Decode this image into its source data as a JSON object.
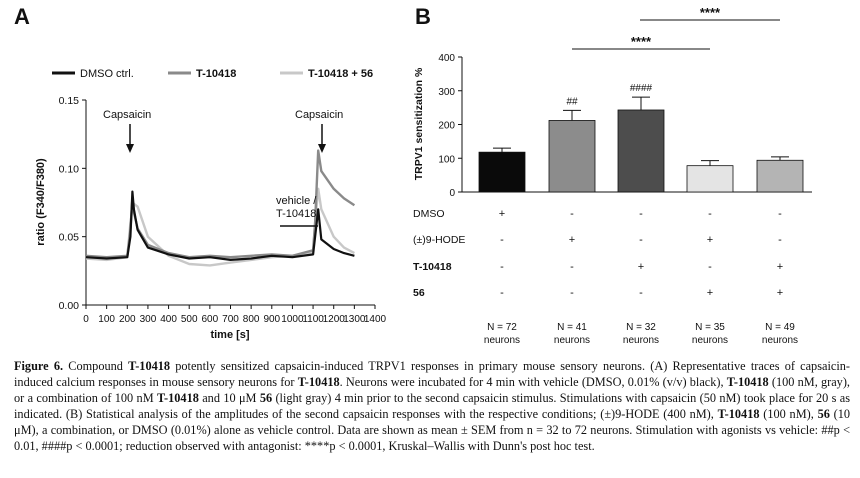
{
  "panelA": {
    "label": "A",
    "legend": [
      "DMSO ctrl.",
      "T-10418",
      "T-10418 + 56"
    ],
    "stim1": "Capsaicin",
    "stim2": "Capsaicin",
    "treatment": [
      "vehicle /",
      "T-10418"
    ],
    "xlabel": "time [s]",
    "ylabel": "ratio (F340/F380)",
    "xticks": [
      "0",
      "100",
      "200",
      "300",
      "400",
      "500",
      "600",
      "700",
      "800",
      "900",
      "1000",
      "1100",
      "1200",
      "1300",
      "1400"
    ],
    "yticks": [
      "0.00",
      "0.05",
      "0.10",
      "0.15"
    ]
  },
  "panelB": {
    "label": "B",
    "ylabel": "TRPV1 sensitization %",
    "yticks": [
      "0",
      "100",
      "200",
      "300",
      "400"
    ],
    "sig_top": "****",
    "sig_mid": "****",
    "hash2": "##",
    "hash4": "####",
    "rows": [
      {
        "label": "DMSO",
        "vals": [
          "+",
          "-",
          "-",
          "-",
          "-"
        ]
      },
      {
        "label": "(±)9-HODE",
        "vals": [
          "-",
          "+",
          "-",
          "+",
          "-"
        ]
      },
      {
        "label": "T-10418",
        "vals": [
          "-",
          "-",
          "+",
          "-",
          "+"
        ]
      },
      {
        "label": "56",
        "vals": [
          "-",
          "-",
          "-",
          "+",
          "+"
        ]
      }
    ],
    "n_values": [
      "N = 72",
      "N = 41",
      "N = 32",
      "N = 35",
      "N = 49"
    ],
    "neurons": "neurons"
  },
  "chart_data": [
    {
      "type": "line",
      "title": "",
      "xlabel": "time [s]",
      "ylabel": "ratio (F340/F380)",
      "xlim": [
        0,
        1400
      ],
      "ylim": [
        0,
        0.15
      ],
      "series": [
        {
          "name": "DMSO ctrl.",
          "color": "#111111",
          "x": [
            0,
            100,
            200,
            215,
            225,
            232,
            250,
            300,
            400,
            500,
            600,
            700,
            800,
            900,
            1000,
            1100,
            1110,
            1125,
            1140,
            1200,
            1250,
            1300
          ],
          "y": [
            0.035,
            0.034,
            0.035,
            0.05,
            0.083,
            0.07,
            0.055,
            0.042,
            0.037,
            0.034,
            0.035,
            0.033,
            0.034,
            0.036,
            0.035,
            0.037,
            0.05,
            0.07,
            0.048,
            0.041,
            0.038,
            0.036
          ]
        },
        {
          "name": "T-10418",
          "color": "#8a8a8a",
          "x": [
            0,
            100,
            200,
            215,
            225,
            232,
            250,
            300,
            400,
            500,
            600,
            700,
            800,
            900,
            1000,
            1100,
            1110,
            1125,
            1140,
            1200,
            1250,
            1300
          ],
          "y": [
            0.036,
            0.035,
            0.036,
            0.055,
            0.078,
            0.068,
            0.056,
            0.044,
            0.038,
            0.035,
            0.036,
            0.035,
            0.036,
            0.037,
            0.036,
            0.04,
            0.06,
            0.113,
            0.098,
            0.085,
            0.078,
            0.073
          ]
        },
        {
          "name": "T-10418 + 56",
          "color": "#c8c8c8",
          "x": [
            0,
            100,
            200,
            215,
            225,
            232,
            250,
            300,
            400,
            500,
            600,
            700,
            800,
            900,
            1000,
            1100,
            1110,
            1125,
            1140,
            1200,
            1250,
            1300
          ],
          "y": [
            0.034,
            0.033,
            0.035,
            0.06,
            0.07,
            0.074,
            0.072,
            0.05,
            0.036,
            0.03,
            0.029,
            0.031,
            0.033,
            0.035,
            0.036,
            0.039,
            0.06,
            0.085,
            0.07,
            0.05,
            0.042,
            0.038
          ]
        }
      ]
    },
    {
      "type": "bar",
      "title": "",
      "ylabel": "TRPV1 sensitization %",
      "ylim": [
        0,
        400
      ],
      "categories": [
        "DMSO",
        "(±)9-HODE",
        "T-10418",
        "(±)9-HODE + 56",
        "T-10418 + 56"
      ],
      "values": [
        118,
        212,
        243,
        78,
        94
      ],
      "errors": [
        12,
        30,
        38,
        15,
        10
      ],
      "colors": [
        "#0a0a0a",
        "#8c8c8c",
        "#4d4d4d",
        "#e4e4e4",
        "#b4b4b4"
      ]
    }
  ],
  "caption": {
    "lead": "Figure 6.",
    "t1": " Compound ",
    "b1": "T-10418",
    "t2": " potently sensitized capsaicin-induced TRPV1 responses in primary mouse sensory neurons. (A) Representative traces of capsaicin-induced calcium responses in mouse sensory neurons for ",
    "b2": "T-10418",
    "t3": ". Neurons were incubated for 4 min with vehicle (DMSO, 0.01% (v/v) black), ",
    "b3": "T-10418",
    "t4": " (100 nM, gray), or a combination of 100 nM ",
    "b4": "T-10418",
    "t5": " and 10 μM ",
    "b5": "56",
    "t6": " (light gray) 4 min prior to the second capsaicin stimulus. Stimulations with capsaicin (50 nM) took place for 20 s as indicated. (B) Statistical analysis of the amplitudes of the second capsaicin responses with the respective conditions; (±)9-HODE (400 nM), ",
    "b6": "T-10418",
    "t7": " (100 nM), ",
    "b7": "56",
    "t8": " (10 μM), a combination, or DMSO (0.01%) alone as vehicle control. Data are shown as mean ± SEM from n = 32 to 72 neurons. Stimulation with agonists vs vehicle: ##p < 0.01, ####p < 0.0001; reduction observed with antagonist: ****p < 0.0001, Kruskal–Wallis with Dunn's post hoc test."
  }
}
